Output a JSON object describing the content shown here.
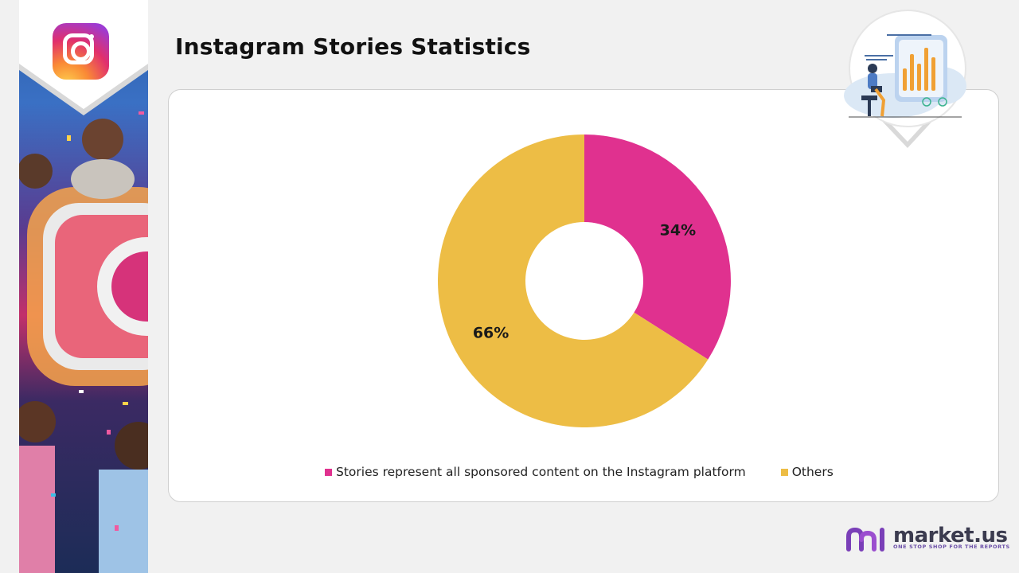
{
  "page": {
    "title": "Instagram Stories Statistics"
  },
  "brand": {
    "name": "market.us",
    "tagline": "ONE STOP SHOP FOR THE REPORTS"
  },
  "colors": {
    "sponsored": "#e0318f",
    "others": "#edbd45",
    "background": "#f1f1f1",
    "panel": "#ffffff"
  },
  "chart_data": {
    "type": "pie",
    "donut": true,
    "title": "Instagram Stories Statistics",
    "categories": [
      "Stories represent all sponsored content on the Instagram platform",
      "Others"
    ],
    "values": [
      34,
      66
    ],
    "labels": [
      "34%",
      "66%"
    ],
    "unit": "%",
    "legend_position": "bottom"
  }
}
